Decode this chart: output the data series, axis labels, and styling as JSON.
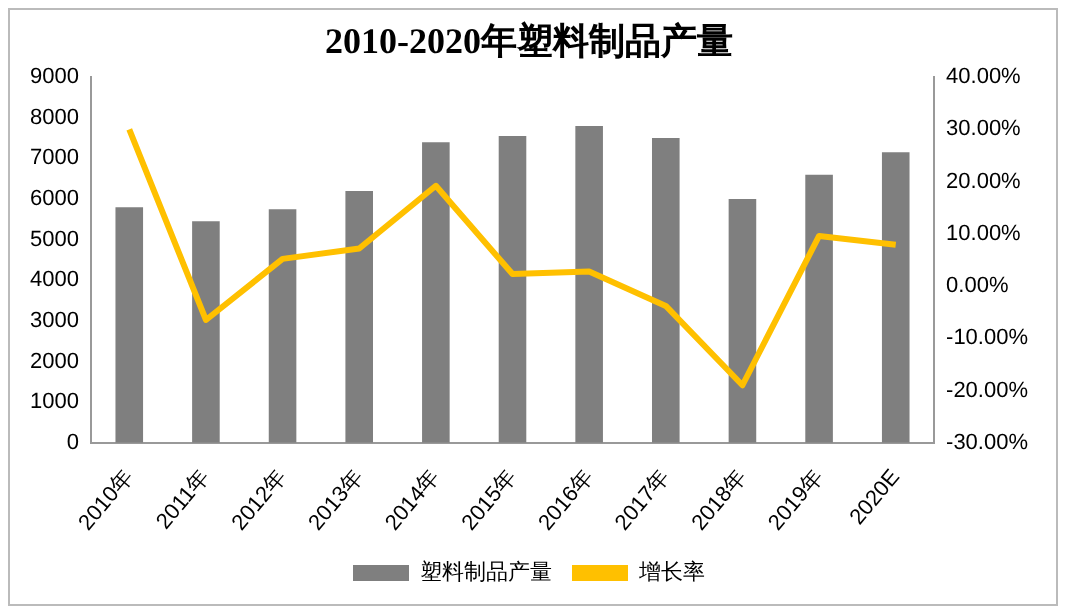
{
  "chart_data": {
    "type": "bar",
    "title": "2010-2020年塑料制品产量",
    "categories": [
      "2010年",
      "2011年",
      "2012年",
      "2013年",
      "2014年",
      "2015年",
      "2016年",
      "2017年",
      "2018年",
      "2019年",
      "2020E"
    ],
    "series": [
      {
        "name": "塑料制品产量",
        "color": "#7f7f7f",
        "values": [
          5800,
          5450,
          5750,
          6200,
          7400,
          7550,
          7800,
          7500,
          6000,
          6600,
          7150
        ]
      },
      {
        "name": "增长率",
        "type": "line",
        "axis": "y2",
        "color": "#ffc000",
        "marker": "none",
        "values": [
          30,
          -6.5,
          5.2,
          7.2,
          19.2,
          2.3,
          2.8,
          -3.8,
          -19,
          9.6,
          7.9
        ]
      }
    ],
    "ylim": [
      0,
      9000
    ],
    "yticks": [
      0,
      1000,
      2000,
      3000,
      4000,
      5000,
      6000,
      7000,
      8000,
      9000
    ],
    "y2lim": [
      -30,
      40
    ],
    "y2ticks": [
      {
        "value": -30,
        "label": "-30.00%"
      },
      {
        "value": -20,
        "label": "-20.00%"
      },
      {
        "value": -10,
        "label": "-10.00%"
      },
      {
        "value": 0,
        "label": "0.00%"
      },
      {
        "value": 10,
        "label": "10.00%"
      },
      {
        "value": 20,
        "label": "20.00%"
      },
      {
        "value": 30,
        "label": "30.00%"
      },
      {
        "value": 40,
        "label": "40.00%"
      }
    ],
    "grid": false,
    "legend": "bottom"
  }
}
